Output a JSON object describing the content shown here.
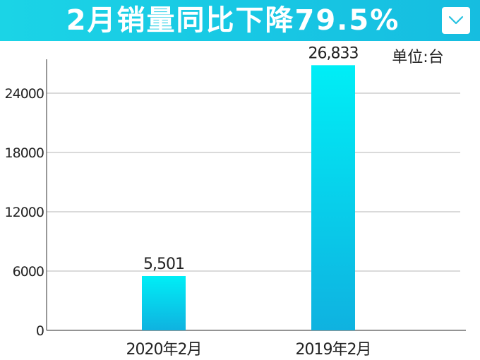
{
  "header": {
    "title": "2月销量同比下降79.5%",
    "button_icon": "chevron-down-icon",
    "accent_color": "#18c8e4"
  },
  "chart_data": {
    "type": "bar",
    "categories": [
      "2020年2月",
      "2019年2月"
    ],
    "values": [
      5501,
      26833
    ],
    "data_labels": [
      "5,501",
      "26,833"
    ],
    "yticks": [
      0,
      6000,
      12000,
      18000,
      24000
    ],
    "ylim": [
      0,
      28000
    ],
    "grid": true,
    "unit_label": "单位:台",
    "bar_color_top": "#00eef6",
    "bar_color_bottom": "#0fb2e0"
  }
}
